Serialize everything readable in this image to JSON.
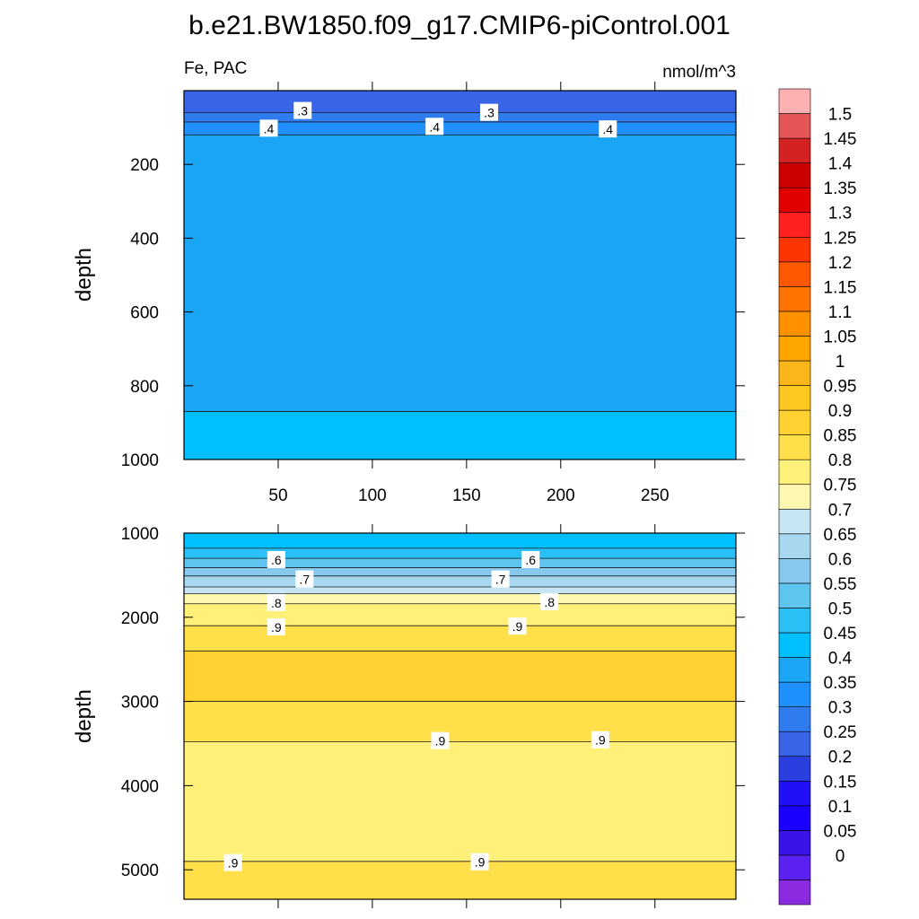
{
  "title": "b.e21.BW1850.f09_g17.CMIP6-piControl.001",
  "chart_data": [
    {
      "type": "heatmap",
      "panel": "upper",
      "left_label": "Fe, PAC",
      "right_label": "nmol/m^3",
      "xlabel": "",
      "ylabel": "depth",
      "xlim": [
        0,
        293
      ],
      "ylim": [
        1000,
        0
      ],
      "x_ticks": [
        50,
        100,
        150,
        200,
        250
      ],
      "x_tick_labels": [
        "50",
        "100",
        "150",
        "200",
        "250"
      ],
      "y_ticks": [
        200,
        400,
        600,
        800,
        1000
      ],
      "y_tick_labels": [
        "200",
        "400",
        "600",
        "800",
        "1000"
      ],
      "bands": [
        {
          "from_depth": 0,
          "to_depth": 60,
          "value": 0.275
        },
        {
          "from_depth": 60,
          "to_depth": 85,
          "value": 0.325
        },
        {
          "from_depth": 85,
          "to_depth": 120,
          "value": 0.375
        },
        {
          "from_depth": 120,
          "to_depth": 870,
          "value": 0.425
        },
        {
          "from_depth": 870,
          "to_depth": 1000,
          "value": 0.475
        }
      ],
      "contour_labels": [
        {
          "text": ".3",
          "x": 63,
          "depth": 55
        },
        {
          "text": ".3",
          "x": 162,
          "depth": 60
        },
        {
          "text": ".4",
          "x": 45,
          "depth": 103
        },
        {
          "text": ".4",
          "x": 133,
          "depth": 98
        },
        {
          "text": ".4",
          "x": 225,
          "depth": 105
        }
      ]
    },
    {
      "type": "heatmap",
      "panel": "lower",
      "xlabel": "",
      "ylabel": "depth",
      "xlim": [
        0,
        293
      ],
      "ylim": [
        5350,
        1000
      ],
      "x_tick_labels": [],
      "y_ticks": [
        1000,
        2000,
        3000,
        4000,
        5000
      ],
      "y_tick_labels": [
        "1000",
        "2000",
        "3000",
        "4000",
        "5000"
      ],
      "bands": [
        {
          "from_depth": 1000,
          "to_depth": 1180,
          "value": 0.475
        },
        {
          "from_depth": 1180,
          "to_depth": 1300,
          "value": 0.525
        },
        {
          "from_depth": 1300,
          "to_depth": 1410,
          "value": 0.575
        },
        {
          "from_depth": 1410,
          "to_depth": 1510,
          "value": 0.625
        },
        {
          "from_depth": 1510,
          "to_depth": 1640,
          "value": 0.675
        },
        {
          "from_depth": 1640,
          "to_depth": 1720,
          "value": 0.725
        },
        {
          "from_depth": 1720,
          "to_depth": 1840,
          "value": 0.775
        },
        {
          "from_depth": 1840,
          "to_depth": 2100,
          "value": 0.825
        },
        {
          "from_depth": 2100,
          "to_depth": 2400,
          "value": 0.875
        },
        {
          "from_depth": 2400,
          "to_depth": 3000,
          "value": 0.925
        },
        {
          "from_depth": 3000,
          "to_depth": 3480,
          "value": 0.875
        },
        {
          "from_depth": 3480,
          "to_depth": 4900,
          "value": 0.825
        },
        {
          "from_depth": 4900,
          "to_depth": 5350,
          "value": 0.875
        }
      ],
      "contour_labels": [
        {
          "text": ".6",
          "x": 49,
          "depth": 1320
        },
        {
          "text": ".6",
          "x": 184,
          "depth": 1320
        },
        {
          "text": ".7",
          "x": 64,
          "depth": 1550
        },
        {
          "text": ".7",
          "x": 168,
          "depth": 1550
        },
        {
          "text": ".8",
          "x": 49,
          "depth": 1830
        },
        {
          "text": ".8",
          "x": 194,
          "depth": 1820
        },
        {
          "text": ".9",
          "x": 49,
          "depth": 2120
        },
        {
          "text": ".9",
          "x": 177,
          "depth": 2110
        },
        {
          "text": ".9",
          "x": 136,
          "depth": 3470
        },
        {
          "text": ".9",
          "x": 221,
          "depth": 3460
        },
        {
          "text": ".9",
          "x": 26,
          "depth": 4920
        },
        {
          "text": ".9",
          "x": 157,
          "depth": 4910
        }
      ]
    }
  ],
  "colorbar": {
    "labels": [
      "1.5",
      "1.45",
      "1.4",
      "1.35",
      "1.3",
      "1.25",
      "1.2",
      "1.15",
      "1.1",
      "1.05",
      "1",
      "0.95",
      "0.9",
      "0.85",
      "0.8",
      "0.75",
      "0.7",
      "0.65",
      "0.6",
      "0.55",
      "0.5",
      "0.45",
      "0.4",
      "0.35",
      "0.3",
      "0.25",
      "0.2",
      "0.15",
      "0.1",
      "0.05",
      "0"
    ],
    "colors_bottom_to_top": [
      "#8a2be2",
      "#5b21f0",
      "#3a14e6",
      "#1a00ff",
      "#1f10f5",
      "#2a3fe0",
      "#3a64e8",
      "#2f7cf0",
      "#1e90ff",
      "#1ba6f5",
      "#00bfff",
      "#2bc0f5",
      "#5dc5f0",
      "#86c8ee",
      "#a8d8f0",
      "#c6e6f5",
      "#fff8b0",
      "#fff07a",
      "#ffe04a",
      "#ffd232",
      "#ffc820",
      "#fbb71a",
      "#ffa500",
      "#ff9000",
      "#ff7300",
      "#ff5800",
      "#ff3500",
      "#ff2020",
      "#e00000",
      "#cc0000",
      "#d42222",
      "#e55555",
      "#ffb0b0"
    ]
  }
}
